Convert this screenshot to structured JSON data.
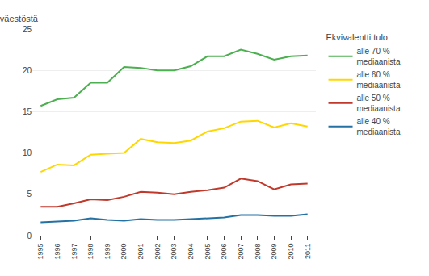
{
  "chart_data": {
    "type": "line",
    "ylabel": "% väestöstä",
    "legend_title": "Ekvivalentti tulo",
    "x": [
      1995,
      1996,
      1997,
      1998,
      1999,
      2000,
      2001,
      2002,
      2003,
      2004,
      2005,
      2006,
      2007,
      2008,
      2009,
      2010,
      2011
    ],
    "series": [
      {
        "name": "alle 70 %\nmediaanista",
        "color": "#4CAF50",
        "values": [
          15.7,
          16.5,
          16.7,
          18.5,
          18.5,
          20.4,
          20.3,
          20.0,
          20.0,
          20.5,
          21.7,
          21.7,
          22.5,
          22.0,
          21.3,
          21.7,
          21.8
        ]
      },
      {
        "name": "alle 60 %\nmediaanista",
        "color": "#FFD700",
        "values": [
          7.7,
          8.6,
          8.5,
          9.8,
          9.9,
          10.0,
          11.7,
          11.3,
          11.2,
          11.5,
          12.6,
          13.0,
          13.8,
          13.9,
          13.1,
          13.6,
          13.2
        ]
      },
      {
        "name": "alle 50 %\nmediaanista",
        "color": "#C0392B",
        "values": [
          3.5,
          3.5,
          3.9,
          4.4,
          4.3,
          4.7,
          5.3,
          5.2,
          5.0,
          5.3,
          5.5,
          5.8,
          6.9,
          6.6,
          5.6,
          6.2,
          6.3
        ]
      },
      {
        "name": "alle 40 %\nmediaanista",
        "color": "#2471A3",
        "values": [
          1.6,
          1.7,
          1.8,
          2.1,
          1.9,
          1.8,
          2.0,
          1.9,
          1.9,
          2.0,
          2.1,
          2.2,
          2.5,
          2.5,
          2.4,
          2.4,
          2.6
        ]
      }
    ],
    "xlim": [
      1994.5,
      2011.5
    ],
    "xticks": [
      1995,
      1996,
      1997,
      1998,
      1999,
      2000,
      2001,
      2002,
      2003,
      2004,
      2005,
      2006,
      2007,
      2008,
      2009,
      2010,
      2011
    ],
    "ylim": [
      0,
      25
    ],
    "yticks": [
      0,
      5,
      10,
      15,
      20,
      25
    ],
    "grid": "y",
    "legend": "right"
  }
}
